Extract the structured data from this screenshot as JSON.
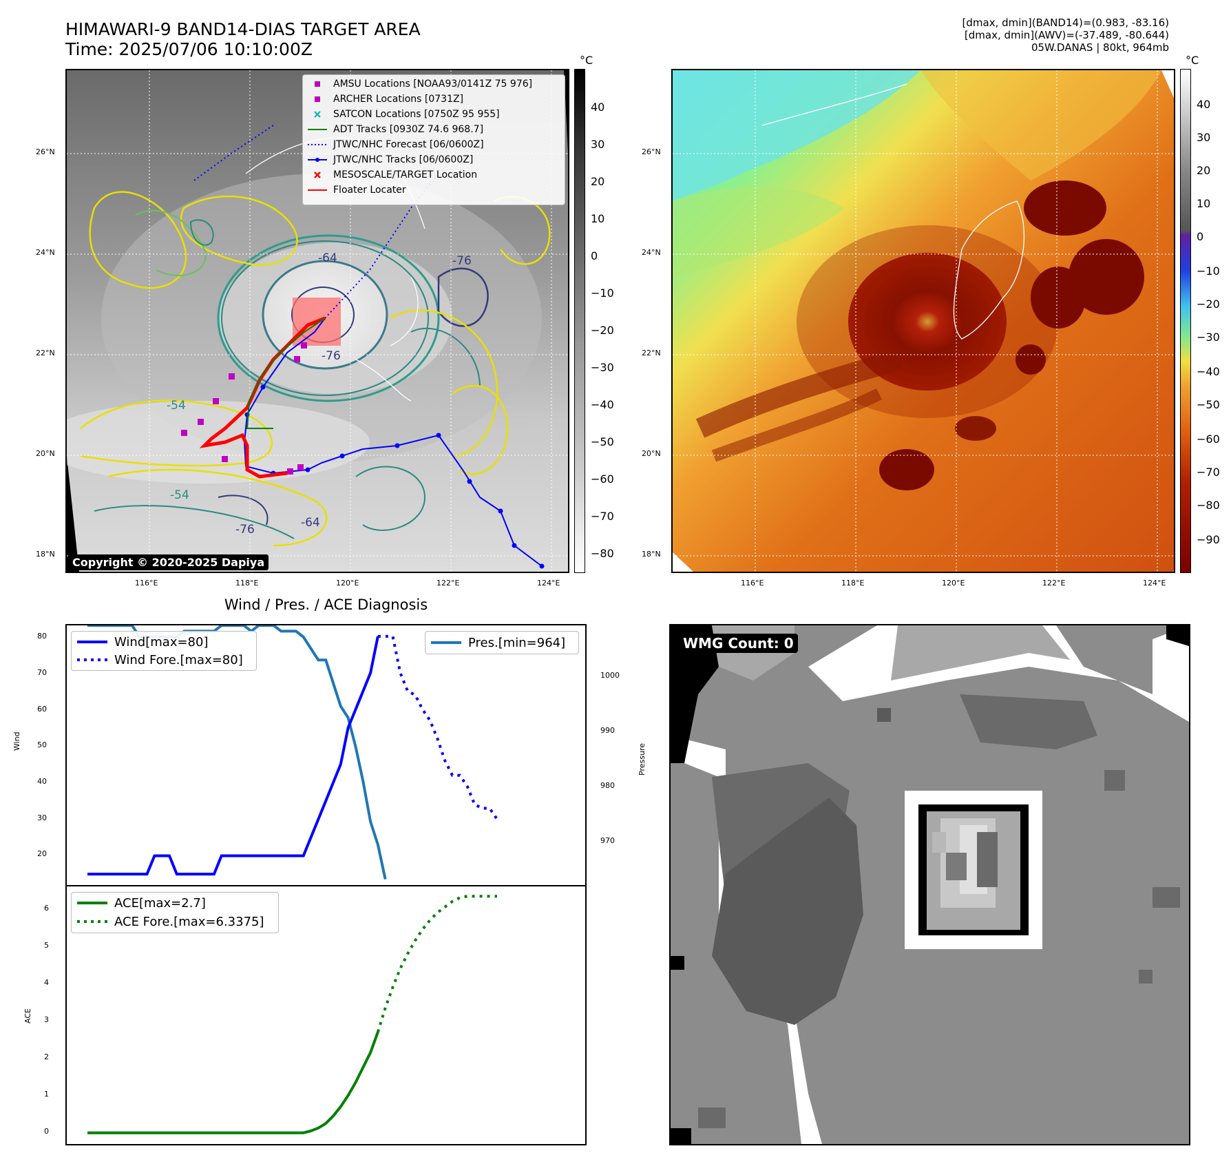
{
  "header": {
    "title_line1": "HIMAWARI-9 BAND14-DIAS TARGET AREA",
    "title_line2": "Time: 2025/07/06 10:10:00Z",
    "info_line1": "[dmax, dmin](BAND14)=(0.983, -83.16)",
    "info_line2": "[dmax, dmin](AWV)=(-37.489, -80.644)",
    "info_line3": "05W.DANAS | 80kt, 964mb"
  },
  "map": {
    "lat_labels": [
      "26°N",
      "24°N",
      "22°N",
      "20°N",
      "18°N"
    ],
    "lon_labels": [
      "116°E",
      "118°E",
      "120°E",
      "122°E",
      "124°E"
    ],
    "copyright": "Copyright © 2020-2025 Dapiya",
    "contour_labels": [
      "-64",
      "-76",
      "-76",
      "-54",
      "-64",
      "-76",
      "-54"
    ],
    "legend": [
      {
        "label": "AMSU Locations [NOAA93/0141Z 75 976]",
        "marker": "square",
        "color": "#c000c0"
      },
      {
        "label": "ARCHER Locations [0731Z]",
        "marker": "square",
        "color": "#c000c0"
      },
      {
        "label": "SATCON Locations [0750Z 95 955]",
        "marker": "x",
        "color": "#00b0b0"
      },
      {
        "label": "ADT Tracks [0930Z 74.6 968.7]",
        "marker": "line",
        "color": "#008000"
      },
      {
        "label": "JTWC/NHC Forecast [06/0600Z]",
        "marker": "dotted",
        "color": "#0000ff"
      },
      {
        "label": "JTWC/NHC Tracks [06/0600Z]",
        "marker": "line-dot",
        "color": "#0000ff"
      },
      {
        "label": "MESOSCALE/TARGET Location",
        "marker": "x",
        "color": "#ff0000"
      },
      {
        "label": "Floater Locater",
        "marker": "line",
        "color": "#ff0000"
      }
    ]
  },
  "colorbar_left": {
    "unit": "°C",
    "ticks": [
      "40",
      "30",
      "20",
      "10",
      "0",
      "−10",
      "−20",
      "−30",
      "−40",
      "−50",
      "−60",
      "−70",
      "−80"
    ]
  },
  "colorbar_right": {
    "unit": "°C",
    "ticks": [
      "40",
      "30",
      "20",
      "10",
      "0",
      "−10",
      "−20",
      "−30",
      "−40",
      "−50",
      "−60",
      "−70",
      "−80",
      "−90"
    ]
  },
  "diag": {
    "title": "Wind / Pres. / ACE Diagnosis",
    "wind_ylabel": "Wind",
    "pres_ylabel": "Pressure",
    "ace_ylabel": "ACE",
    "wind_ticks": [
      "80",
      "70",
      "60",
      "50",
      "40",
      "30",
      "20"
    ],
    "pres_ticks": [
      "1000",
      "990",
      "980",
      "970"
    ],
    "ace_ticks": [
      "6",
      "5",
      "4",
      "3",
      "2",
      "1",
      "0"
    ],
    "legend_wind": "Wind[max=80]",
    "legend_wind_fore": "Wind Fore.[max=80]",
    "legend_pres": "Pres.[min=964]",
    "legend_ace": "ACE[max=2.7]",
    "legend_ace_fore": "ACE Fore.[max=6.3375]"
  },
  "wmg": {
    "label": "WMG Count: 0"
  },
  "colors": {
    "wind": "#0000ff",
    "pressure": "#1f77b4",
    "ace": "#008000"
  },
  "chart_data": [
    {
      "type": "line",
      "title": "Wind / Pres. / ACE Diagnosis",
      "ylabel": "Wind",
      "ylim": [
        12,
        83
      ],
      "series": [
        {
          "name": "Wind[max=80]",
          "values": [
            15,
            15,
            15,
            15,
            15,
            15,
            15,
            15,
            15,
            20,
            20,
            20,
            15,
            15,
            15,
            15,
            15,
            15,
            20,
            20,
            20,
            20,
            20,
            20,
            20,
            20,
            20,
            20,
            20,
            20,
            25,
            30,
            35,
            40,
            45,
            55,
            60,
            65,
            70,
            80
          ]
        },
        {
          "name": "Wind Fore.[max=80]",
          "start_index": 39,
          "values": [
            80,
            80,
            80,
            70,
            65,
            64,
            60,
            57,
            52,
            46,
            42,
            42,
            39,
            34,
            33,
            33,
            30
          ]
        }
      ]
    },
    {
      "type": "line",
      "ylabel": "Pressure",
      "ylim": [
        963,
        1008
      ],
      "series": [
        {
          "name": "Pres.[min=964]",
          "values": [
            1008,
            1008,
            1008,
            1008,
            1008,
            1008,
            1008,
            1006,
            1006,
            1006,
            1006,
            1006,
            1006,
            1007,
            1007,
            1007,
            1007,
            1007,
            1008,
            1008,
            1008,
            1008,
            1007,
            1008,
            1008,
            1008,
            1007,
            1007,
            1007,
            1006,
            1004,
            1002,
            1002,
            998,
            994,
            992,
            987,
            981,
            974,
            970,
            964
          ]
        }
      ]
    },
    {
      "type": "line",
      "ylabel": "ACE",
      "ylim": [
        -0.3,
        6.6
      ],
      "series": [
        {
          "name": "ACE[max=2.7]",
          "values": [
            0,
            0,
            0,
            0,
            0,
            0,
            0,
            0,
            0,
            0,
            0,
            0,
            0,
            0,
            0,
            0,
            0,
            0,
            0,
            0,
            0,
            0,
            0,
            0,
            0,
            0,
            0,
            0,
            0,
            0,
            0.05,
            0.13,
            0.25,
            0.45,
            0.7,
            1.0,
            1.35,
            1.75,
            2.15,
            2.7
          ]
        },
        {
          "name": "ACE Fore.[max=6.3375]",
          "start_index": 39,
          "values": [
            2.7,
            3.35,
            3.9,
            4.4,
            4.8,
            5.15,
            5.45,
            5.7,
            5.9,
            6.05,
            6.2,
            6.3,
            6.3375,
            6.3375,
            6.3375,
            6.3375,
            6.3375
          ]
        }
      ]
    }
  ]
}
